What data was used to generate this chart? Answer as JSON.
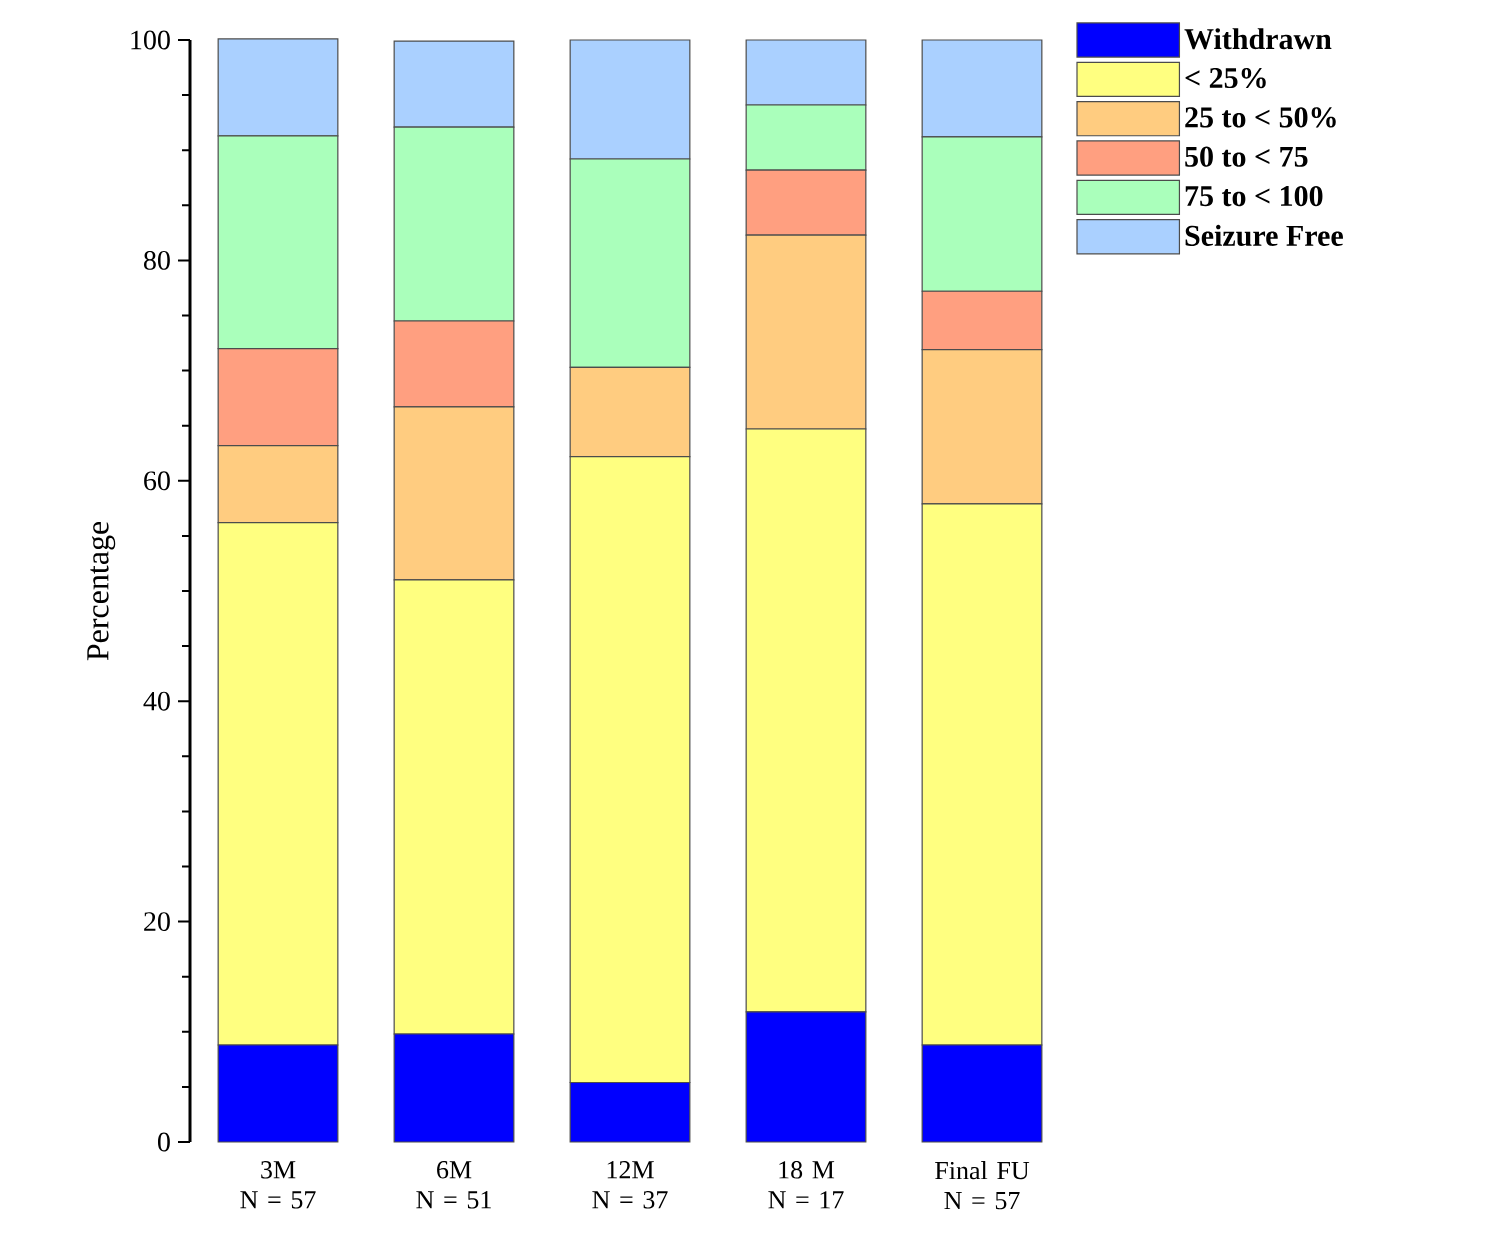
{
  "chart_data": {
    "type": "bar",
    "stacked": true,
    "ylabel": "Percentage",
    "categories": [
      "3M\nN = 57",
      "6M\nN = 51",
      "12M\nN = 37",
      "18 M\nN = 17",
      "Final FU\nN = 57"
    ],
    "series": [
      {
        "name": "Withdrawn",
        "color": "#0000ff",
        "values": [
          8.8,
          9.8,
          5.4,
          11.8,
          8.8
        ]
      },
      {
        "name": "< 25%",
        "color": "#ffff80",
        "values": [
          47.4,
          41.2,
          56.8,
          52.9,
          49.1
        ]
      },
      {
        "name": "25 to < 50%",
        "color": "#ffcc80",
        "values": [
          7.0,
          15.7,
          8.1,
          17.6,
          14.0
        ]
      },
      {
        "name": "50 to < 75",
        "color": "#ff9f80",
        "values": [
          8.8,
          7.8,
          0,
          5.9,
          5.3
        ]
      },
      {
        "name": "75 to < 100",
        "color": "#aaffbb",
        "values": [
          19.3,
          17.6,
          18.9,
          5.9,
          14.0
        ]
      },
      {
        "name": "Seizure Free",
        "color": "#aad0ff",
        "values": [
          8.8,
          7.8,
          10.8,
          5.9,
          8.8
        ]
      }
    ],
    "ylim": [
      0,
      100
    ],
    "yticks": [
      0,
      20,
      40,
      60,
      80,
      100
    ],
    "grid": false,
    "legend": "top right"
  }
}
